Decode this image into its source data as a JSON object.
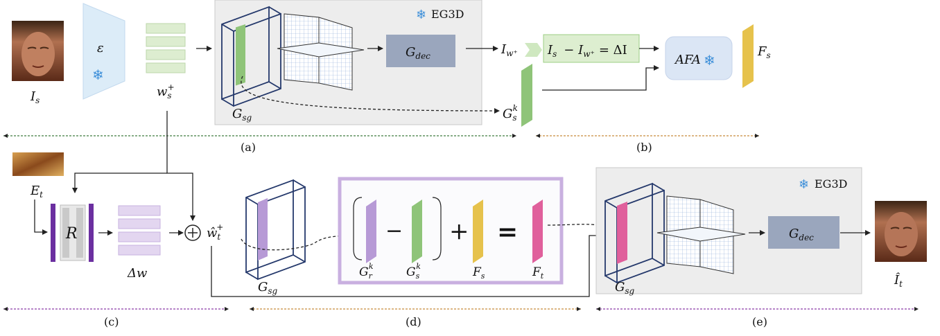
{
  "panels": {
    "a": "(a)",
    "b": "(b)",
    "c": "(c)",
    "d": "(d)",
    "e": "(e)"
  },
  "top_row": {
    "source_image_label": "I",
    "source_image_sub": "s",
    "encoder_label": "ε",
    "latent_label": "w",
    "latent_sub": "s",
    "latent_sup": "+",
    "eg3d_box_label": "EG3D",
    "generator_label": "G",
    "generator_sub": "sg",
    "decoder_label": "G",
    "decoder_sub": "dec",
    "render_output_label": "I",
    "render_output_sub": "w⁺",
    "residual_eq_text": "I  − I  = ΔI",
    "residual_eq_lhs": "I",
    "residual_eq_lhs_sub": "s",
    "residual_eq_mid": "− I",
    "residual_eq_mid_sub": "w⁺",
    "residual_eq_rhs": "= ΔI",
    "feature_label": "G",
    "feature_sub": "s",
    "feature_sup": "k",
    "afa_label": "AFA",
    "afa_output_label": "F",
    "afa_output_sub": "s"
  },
  "bottom_row": {
    "expression_label": "E",
    "expression_sub": "t",
    "regressor_label": "R",
    "delta_w_label": "Δw",
    "combined_latent_label": "ŵ",
    "combined_latent_sub": "t",
    "combined_latent_sup": "+",
    "generator_label": "G",
    "generator_sub": "sg",
    "minus_symbol": "−",
    "plus_symbol": "+",
    "equals_symbol": "=",
    "gr_label": "G",
    "gr_sub": "r",
    "gr_sup": "k",
    "gs_label": "G",
    "gs_sub": "s",
    "gs_sup": "k",
    "fs_label": "F",
    "fs_sub": "s",
    "ft_label": "F",
    "ft_sub": "t",
    "eg3d_box_label": "EG3D",
    "generator2_label": "G",
    "generator2_sub": "sg",
    "decoder_label": "G",
    "decoder_sub": "dec",
    "output_label": "Î",
    "output_sub": "t"
  },
  "colors": {
    "green_plane": "#8fc479",
    "purple_plane": "#b79ad6",
    "yellow_plane": "#e6c24c",
    "pink_plane": "#e0609c",
    "decoder_fill": "#9aa6bd",
    "gray_box": "#ededed",
    "frame_stroke": "#24386b",
    "snow": "#3d8fd9",
    "regressor_bar": "#6b2fa0",
    "merge_box_border": "#c9b0e0"
  }
}
